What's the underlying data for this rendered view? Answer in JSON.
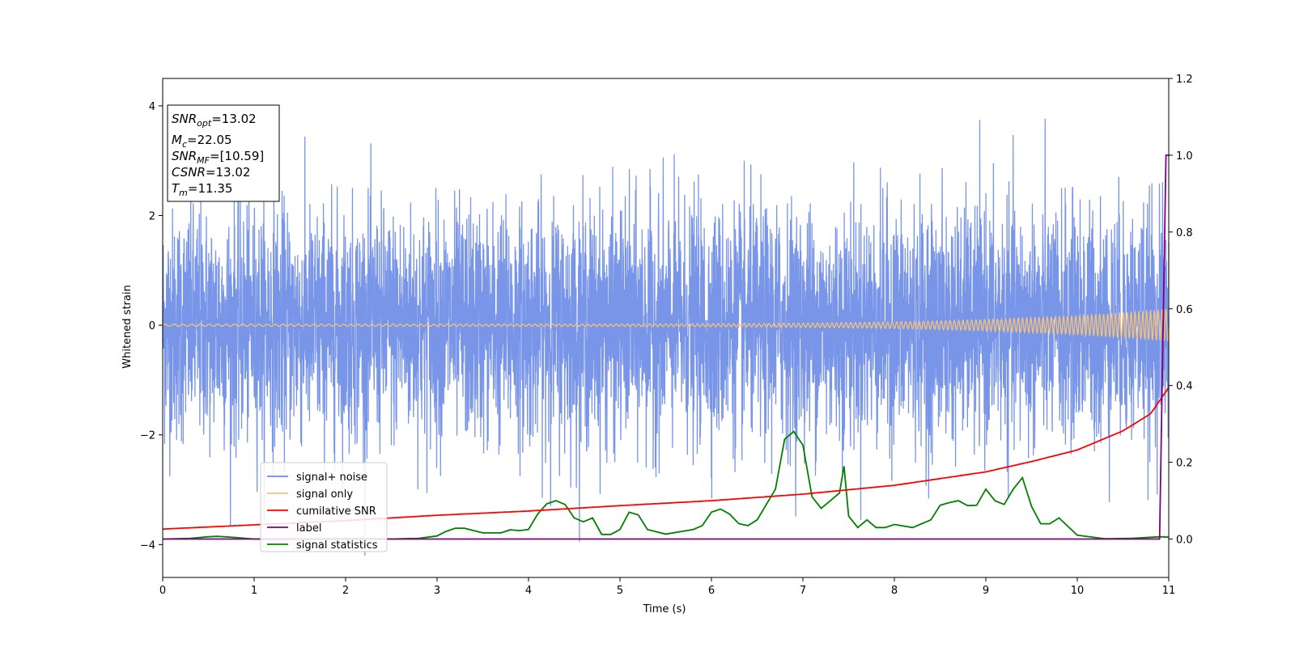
{
  "chart_data": {
    "type": "line",
    "xlabel": "Time (s)",
    "ylabel": "Whitened strain",
    "xlim": [
      0,
      11
    ],
    "ylim_left": [
      -4.6,
      4.5
    ],
    "ylim_right": [
      -0.1,
      1.2
    ],
    "xticks": [
      "0",
      "1",
      "2",
      "3",
      "4",
      "5",
      "6",
      "7",
      "8",
      "9",
      "10",
      "11"
    ],
    "yticks_left": [
      "−4",
      "−2",
      "0",
      "2",
      "4"
    ],
    "yticks_left_values": [
      -4,
      -2,
      0,
      2,
      4
    ],
    "yticks_right": [
      "0.0",
      "0.2",
      "0.4",
      "0.6",
      "0.8",
      "1.0",
      "1.2"
    ],
    "yticks_right_values": [
      0.0,
      0.2,
      0.4,
      0.6,
      0.8,
      1.0,
      1.2
    ],
    "grid": false,
    "legend_position": "lower-left",
    "info_box": {
      "line1_base": "SNR",
      "line1_sub": "opt",
      "line1_rest": "=13.02",
      "line2_base": "M",
      "line2_sub": "c",
      "line2_rest": "=22.05",
      "line3_base": "SNR",
      "line3_sub": "MF",
      "line3_rest": "=[10.59]",
      "line4_base": "CSNR",
      "line4_rest": "=13.02",
      "line5_base": "T",
      "line5_sub": "m",
      "line5_rest": "=11.35"
    },
    "series": [
      {
        "name": "signal+ noise",
        "axis": "left",
        "color": "#6a8ae6",
        "description_values": "noise approx. N(0,1), range about -4.2 to 4.1"
      },
      {
        "name": "signal only",
        "axis": "left",
        "color": "#f5c27a",
        "chirp_amplitude_end": 0.3,
        "chirp_freq_start": 10,
        "chirp_freq_end": 17
      },
      {
        "name": "cumilative SNR",
        "axis": "right",
        "color": "#ff0000",
        "x": [
          0,
          1,
          2,
          3,
          4,
          5,
          6,
          7,
          8,
          9,
          9.5,
          10,
          10.5,
          10.8,
          11
        ],
        "y": [
          0.026,
          0.037,
          0.048,
          0.062,
          0.073,
          0.087,
          0.1,
          0.117,
          0.14,
          0.175,
          0.202,
          0.232,
          0.282,
          0.326,
          0.395
        ]
      },
      {
        "name": "label",
        "axis": "right",
        "color": "#800080",
        "x": [
          0,
          10.9,
          10.97,
          11
        ],
        "y": [
          0.0,
          0.0,
          1.0,
          1.0
        ]
      },
      {
        "name": "signal statistics",
        "axis": "right",
        "color": "#008000",
        "x": [
          0,
          0.3,
          0.5,
          0.6,
          0.8,
          1.0,
          1.5,
          2.0,
          2.5,
          2.8,
          3.0,
          3.1,
          3.2,
          3.3,
          3.5,
          3.7,
          3.8,
          3.9,
          4.0,
          4.1,
          4.2,
          4.3,
          4.4,
          4.5,
          4.6,
          4.7,
          4.8,
          4.9,
          5.0,
          5.1,
          5.2,
          5.3,
          5.5,
          5.8,
          5.9,
          6.0,
          6.1,
          6.2,
          6.3,
          6.4,
          6.5,
          6.6,
          6.7,
          6.8,
          6.9,
          7.0,
          7.1,
          7.2,
          7.3,
          7.4,
          7.45,
          7.5,
          7.6,
          7.7,
          7.8,
          7.9,
          8.0,
          8.2,
          8.4,
          8.5,
          8.6,
          8.7,
          8.8,
          8.9,
          9.0,
          9.1,
          9.2,
          9.3,
          9.4,
          9.5,
          9.6,
          9.7,
          9.8,
          10.0,
          10.3,
          10.6,
          10.9,
          11.0
        ],
        "y": [
          0.0,
          0.002,
          0.006,
          0.007,
          0.004,
          0.0,
          0.0,
          0.001,
          0.0,
          0.002,
          0.008,
          0.02,
          0.028,
          0.028,
          0.016,
          0.016,
          0.024,
          0.022,
          0.025,
          0.065,
          0.092,
          0.1,
          0.09,
          0.055,
          0.045,
          0.055,
          0.012,
          0.012,
          0.025,
          0.07,
          0.063,
          0.025,
          0.013,
          0.025,
          0.035,
          0.07,
          0.078,
          0.065,
          0.04,
          0.035,
          0.05,
          0.09,
          0.13,
          0.26,
          0.28,
          0.245,
          0.11,
          0.08,
          0.1,
          0.12,
          0.19,
          0.06,
          0.03,
          0.05,
          0.03,
          0.03,
          0.038,
          0.03,
          0.05,
          0.088,
          0.095,
          0.1,
          0.087,
          0.088,
          0.13,
          0.1,
          0.09,
          0.13,
          0.16,
          0.085,
          0.04,
          0.04,
          0.055,
          0.01,
          0.001,
          0.002,
          0.006,
          0.005
        ]
      }
    ]
  }
}
